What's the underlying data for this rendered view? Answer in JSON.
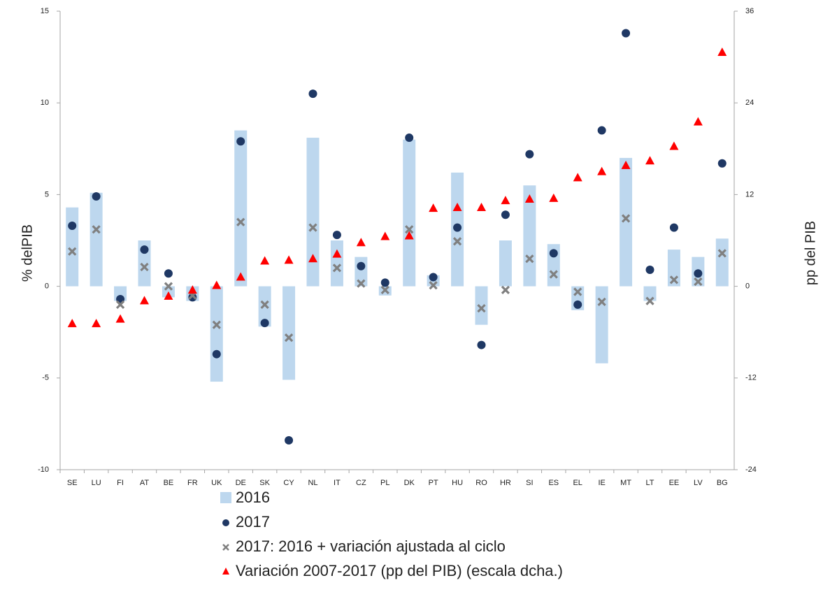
{
  "chart_data": {
    "type": "bar",
    "ylabel": "% delPIB",
    "y2label": "pp del PIB",
    "categories": [
      "SE",
      "LU",
      "FI",
      "AT",
      "BE",
      "FR",
      "UK",
      "DE",
      "SK",
      "CY",
      "NL",
      "IT",
      "CZ",
      "PL",
      "DK",
      "PT",
      "HU",
      "RO",
      "HR",
      "SI",
      "ES",
      "EL",
      "IE",
      "MT",
      "LT",
      "EE",
      "LV",
      "BG"
    ],
    "ylim": [
      -10,
      15
    ],
    "yticks": [
      -10,
      -5,
      0,
      5,
      10,
      15
    ],
    "y2lim": [
      -24,
      36
    ],
    "y2ticks": [
      -24,
      -12,
      0,
      12,
      24,
      36
    ],
    "grid": false,
    "legend": "bottom",
    "series": [
      {
        "name": "2016",
        "type": "bar",
        "color": "#bdd7ee",
        "values": [
          4.3,
          5.1,
          -0.8,
          2.5,
          -0.6,
          -0.8,
          -5.2,
          8.5,
          -2.2,
          -5.1,
          8.1,
          2.5,
          1.6,
          -0.5,
          8.0,
          0.6,
          6.2,
          -2.1,
          2.5,
          5.5,
          2.3,
          -1.3,
          -4.2,
          7.0,
          -0.8,
          2.0,
          1.6,
          2.6
        ]
      },
      {
        "name": "2017",
        "type": "scatter",
        "marker": "circle",
        "color": "#1f3864",
        "values": [
          3.3,
          4.9,
          -0.7,
          2.0,
          0.7,
          -0.6,
          -3.7,
          7.9,
          -2.0,
          -8.4,
          10.5,
          2.8,
          1.1,
          0.2,
          8.1,
          0.5,
          3.2,
          -3.2,
          3.9,
          7.2,
          1.8,
          -1.0,
          8.5,
          13.8,
          0.9,
          3.2,
          0.7,
          6.7
        ]
      },
      {
        "name": "2017: 2016 + variación ajustada al ciclo",
        "type": "scatter",
        "marker": "x",
        "color": "#808080",
        "values": [
          1.9,
          3.1,
          -1.0,
          1.05,
          0.0,
          -0.5,
          -2.1,
          3.5,
          -1.0,
          -2.8,
          3.2,
          1.0,
          0.15,
          -0.2,
          3.1,
          0.05,
          2.45,
          -1.2,
          -0.2,
          1.5,
          0.65,
          -0.3,
          -0.85,
          3.7,
          -0.8,
          0.35,
          0.25,
          1.8
        ]
      },
      {
        "name": "Variación 2007-2017 (pp del PIB) (escala dcha.)",
        "type": "scatter",
        "marker": "triangle",
        "color": "#ff0000",
        "axis": "y2",
        "values": [
          -4.9,
          -4.9,
          -4.3,
          -1.9,
          -1.3,
          -0.5,
          0.1,
          1.2,
          3.3,
          3.4,
          3.6,
          4.2,
          5.7,
          6.5,
          6.6,
          10.2,
          10.3,
          10.3,
          11.2,
          11.4,
          11.5,
          14.2,
          15.0,
          15.8,
          16.4,
          18.3,
          21.5,
          30.6
        ]
      }
    ]
  }
}
